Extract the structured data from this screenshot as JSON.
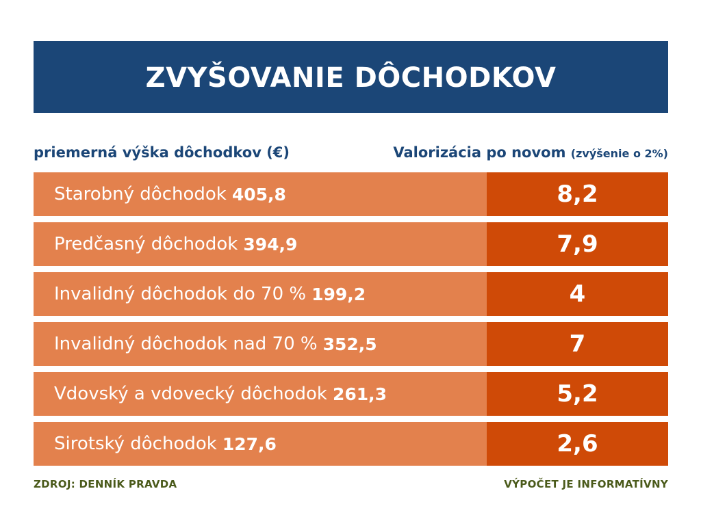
{
  "title": "ZVYŠOVANIE DÔCHODKOV",
  "headers": {
    "left": "priemerná výška dôchodkov (€)",
    "right_main": "Valorizácia po novom",
    "right_note": "(zvýšenie o 2%)"
  },
  "colors": {
    "banner": "#1b4677",
    "label_cell": "#e3814d",
    "value_cell": "#cf4a07",
    "header_text": "#1b4677",
    "footer_text": "#4a5a1a"
  },
  "chart_data": {
    "type": "table",
    "title": "ZVYŠOVANIE DÔCHODKOV",
    "columns": [
      "priemerná výška dôchodkov (€)",
      "Valorizácia po novom (zvýšenie o 2%)"
    ],
    "rows": [
      {
        "name": "Starobný dôchodok",
        "average": "405,8",
        "valorization": "8,2"
      },
      {
        "name": "Predčasný dôchodok",
        "average": "394,9",
        "valorization": "7,9"
      },
      {
        "name": "Invalidný dôchodok do 70 %",
        "average": "199,2",
        "valorization": "4"
      },
      {
        "name": "Invalidný dôchodok nad 70 %",
        "average": "352,5",
        "valorization": "7"
      },
      {
        "name": "Vdovský a vdovecký dôchodok",
        "average": "261,3",
        "valorization": "5,2"
      },
      {
        "name": "Sirotský dôchodok",
        "average": "127,6",
        "valorization": "2,6"
      }
    ]
  },
  "footer": {
    "source": "ZDROJ: DENNÍK PRAVDA",
    "note": "VÝPOČET JE INFORMATÍVNY"
  }
}
